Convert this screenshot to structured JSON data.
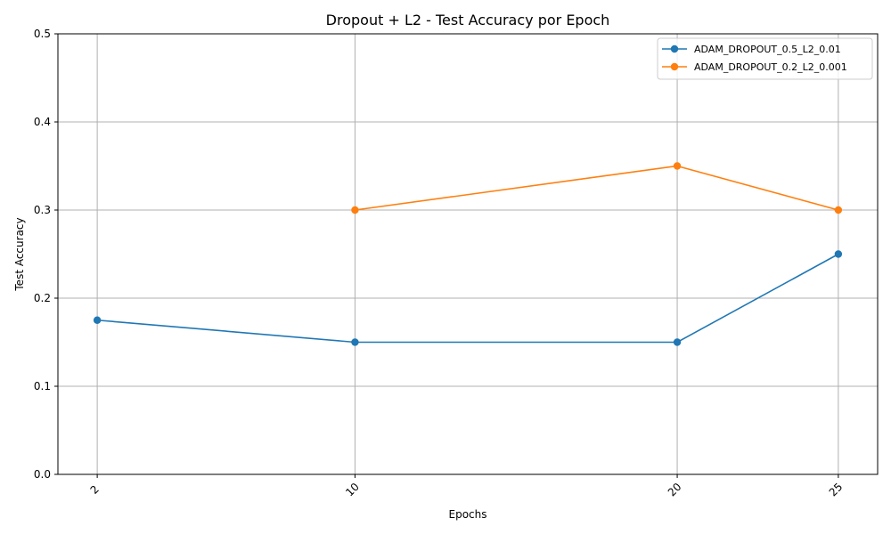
{
  "chart_data": {
    "type": "line",
    "title": "Dropout + L2 - Test Accuracy por Epoch",
    "xlabel": "Epochs",
    "ylabel": "Test Accuracy",
    "x_ticks": [
      2,
      10,
      20,
      25
    ],
    "x_tick_labels": [
      "2",
      "10",
      "20",
      "25"
    ],
    "xlim": [
      0.78,
      26.22
    ],
    "ylim": [
      0,
      0.5
    ],
    "y_ticks": [
      0,
      0.1,
      0.2,
      0.3,
      0.4,
      0.5
    ],
    "y_tick_labels": [
      "0.0",
      "0.1",
      "0.2",
      "0.3",
      "0.4",
      "0.5"
    ],
    "grid": true,
    "legend_position": "top-right",
    "series": [
      {
        "name": "ADAM_DROPOUT_0.5_L2_0.01",
        "color": "#1f77b4",
        "x": [
          2,
          10,
          20,
          25
        ],
        "y": [
          0.175,
          0.15,
          0.15,
          0.25
        ]
      },
      {
        "name": "ADAM_DROPOUT_0.2_L2_0.001",
        "color": "#ff7f0e",
        "x": [
          10,
          20,
          25
        ],
        "y": [
          0.3,
          0.35,
          0.3
        ]
      }
    ]
  }
}
